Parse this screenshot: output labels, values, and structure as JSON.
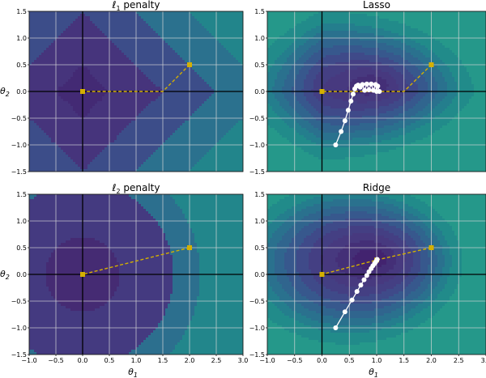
{
  "chart_data": [
    {
      "type": "contour",
      "panel": "top-left",
      "title": "ℓ1 penalty",
      "title_symbol": "ℓ",
      "title_sub": "1",
      "title_rest": " penalty",
      "field": "l1",
      "xlim": [
        -1.0,
        3.0
      ],
      "ylim": [
        -1.5,
        1.5
      ],
      "xticks": [
        "−1.0",
        "−0.5",
        "0.0",
        "0.5",
        "1.0",
        "1.5",
        "2.0",
        "2.5",
        "3.0"
      ],
      "yticks": [
        "1.5",
        "1.0",
        "0.5",
        "0.0",
        "−0.5",
        "−1.0",
        "−1.5"
      ],
      "ylabel_base": "θ",
      "ylabel_sub": "2",
      "show_xlabel": false,
      "show_ylabel": true,
      "show_xticklabels": false,
      "path_yellow": [
        [
          2.0,
          0.5
        ],
        [
          1.5,
          0.0
        ],
        [
          0.0,
          0.0
        ]
      ],
      "path_white": []
    },
    {
      "type": "contour",
      "panel": "top-right",
      "title": "Lasso",
      "title_symbol": "",
      "title_sub": "",
      "title_rest": "Lasso",
      "field": "lasso",
      "xlim": [
        -1.0,
        3.0
      ],
      "ylim": [
        -1.5,
        1.5
      ],
      "xticks": [
        "−1.0",
        "−0.5",
        "0.0",
        "0.5",
        "1.0",
        "1.5",
        "2.0",
        "2.5",
        "3.0"
      ],
      "yticks": [
        "1.5",
        "1.0",
        "0.5",
        "0.0",
        "−0.5",
        "−1.0",
        "−1.5"
      ],
      "show_xlabel": false,
      "show_ylabel": false,
      "show_xticklabels": false,
      "path_yellow": [
        [
          2.0,
          0.5
        ],
        [
          1.5,
          0.0
        ],
        [
          0.0,
          0.0
        ]
      ],
      "path_white": [
        [
          0.25,
          -1.0
        ],
        [
          0.35,
          -0.75
        ],
        [
          0.42,
          -0.55
        ],
        [
          0.48,
          -0.35
        ],
        [
          0.53,
          -0.18
        ],
        [
          0.57,
          -0.05
        ],
        [
          0.6,
          0.05
        ],
        [
          0.63,
          0.1
        ],
        [
          0.66,
          0.12
        ],
        [
          0.7,
          0.08
        ],
        [
          0.74,
          0.13
        ],
        [
          0.78,
          0.02
        ],
        [
          0.82,
          0.14
        ],
        [
          0.86,
          0.03
        ],
        [
          0.9,
          0.14
        ],
        [
          0.94,
          0.02
        ],
        [
          0.98,
          0.13
        ],
        [
          1.0,
          0.0
        ],
        [
          1.02,
          0.1
        ],
        [
          1.05,
          0.0
        ]
      ]
    },
    {
      "type": "contour",
      "panel": "bottom-left",
      "title": "ℓ2 penalty",
      "title_symbol": "ℓ",
      "title_sub": "2",
      "title_rest": " penalty",
      "field": "l2",
      "xlim": [
        -1.0,
        3.0
      ],
      "ylim": [
        -1.5,
        1.5
      ],
      "xticks": [
        "−1.0",
        "−0.5",
        "0.0",
        "0.5",
        "1.0",
        "1.5",
        "2.0",
        "2.5",
        "3.0"
      ],
      "yticks": [
        "1.5",
        "1.0",
        "0.5",
        "0.0",
        "−0.5",
        "−1.0",
        "−1.5"
      ],
      "xlabel_base": "θ",
      "xlabel_sub": "1",
      "ylabel_base": "θ",
      "ylabel_sub": "2",
      "show_xlabel": true,
      "show_ylabel": true,
      "show_xticklabels": true,
      "path_yellow": [
        [
          2.0,
          0.5
        ],
        [
          0.0,
          0.0
        ]
      ],
      "path_white": []
    },
    {
      "type": "contour",
      "panel": "bottom-right",
      "title": "Ridge",
      "title_symbol": "",
      "title_sub": "",
      "title_rest": "Ridge",
      "field": "ridge",
      "xlim": [
        -1.0,
        3.0
      ],
      "ylim": [
        -1.5,
        1.5
      ],
      "xticks": [
        "−1.0",
        "−0.5",
        "0.0",
        "0.5",
        "1.0",
        "1.5",
        "2.0",
        "2.5",
        "3.0"
      ],
      "yticks": [
        "1.5",
        "1.0",
        "0.5",
        "0.0",
        "−0.5",
        "−1.0",
        "−1.5"
      ],
      "xlabel_base": "θ",
      "xlabel_sub": "1",
      "show_xlabel": true,
      "show_ylabel": false,
      "show_xticklabels": true,
      "path_yellow": [
        [
          2.0,
          0.5
        ],
        [
          1.0,
          0.27
        ],
        [
          0.0,
          0.0
        ]
      ],
      "path_white": [
        [
          0.25,
          -1.0
        ],
        [
          0.42,
          -0.7
        ],
        [
          0.55,
          -0.48
        ],
        [
          0.64,
          -0.32
        ],
        [
          0.71,
          -0.2
        ],
        [
          0.77,
          -0.1
        ],
        [
          0.82,
          -0.02
        ],
        [
          0.86,
          0.05
        ],
        [
          0.9,
          0.11
        ],
        [
          0.93,
          0.16
        ],
        [
          0.96,
          0.2
        ],
        [
          0.98,
          0.23
        ],
        [
          1.0,
          0.26
        ],
        [
          1.01,
          0.28
        ]
      ]
    }
  ],
  "colors": {
    "yellow": "#d4b000",
    "white": "#ffffff",
    "grid": "#d8d8d8",
    "axis_line": "#000000"
  }
}
